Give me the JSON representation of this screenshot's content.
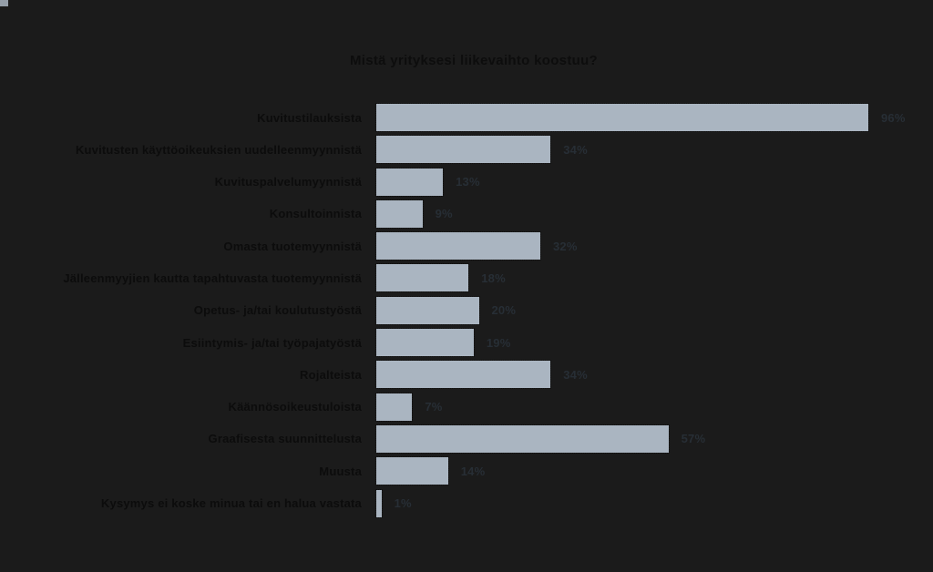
{
  "page": {
    "background_color": "#1b1b1b",
    "corner_artifact_color": "#aab5c1"
  },
  "chart_data": {
    "type": "bar",
    "orientation": "horizontal",
    "title": "Mistä yrityksesi liikevaihto koostuu?",
    "categories": [
      "Kuvitustilauksista",
      "Kuvitusten käyttöoikeuksien uudelleenmyynnistä",
      "Kuvituspalvelumyynnistä",
      "Konsultoinnista",
      "Omasta tuotemyynnistä",
      "Jälleenmyyjien kautta tapahtuvasta tuotemyynnistä",
      "Opetus- ja/tai koulutustyöstä",
      "Esiintymis- ja/tai työpajatyöstä",
      "Rojalteista",
      "Käännösoikeustuloista",
      "Graafisesta suunnittelusta",
      "Muusta",
      "Kysymys ei koske minua tai en halua vastata"
    ],
    "values": [
      96,
      34,
      13,
      9,
      32,
      18,
      20,
      19,
      34,
      7,
      57,
      14,
      1
    ],
    "value_suffix": "%",
    "value_labels": [
      "96%",
      "34%",
      "13%",
      "9%",
      "32%",
      "18%",
      "20%",
      "19%",
      "34%",
      "7%",
      "57%",
      "14%",
      "1%"
    ],
    "xlim": [
      0,
      100
    ],
    "grid": false,
    "legend": "none",
    "bar_color": "#aab5c1",
    "title_color": "#0d0d0d",
    "category_label_color": "#0c0c0c",
    "value_label_color": "#272e35"
  }
}
